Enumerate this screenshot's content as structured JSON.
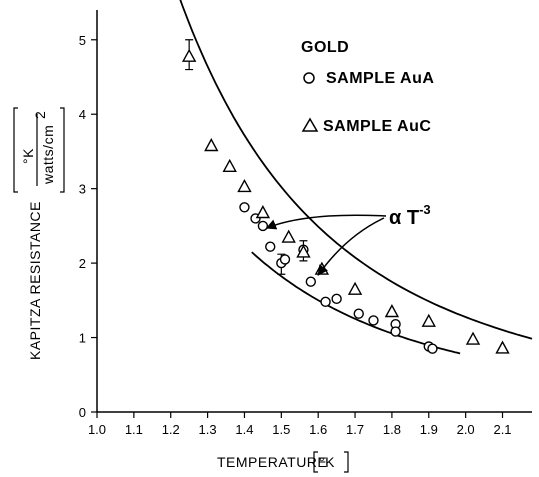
{
  "chart_data": {
    "type": "scatter",
    "xlabel": "TEMPERATURE",
    "xlabel_unit": "°K",
    "ylabel": "KAPITZA RESISTANCE",
    "ylabel_unit_num": "°K",
    "ylabel_unit_den": "watts/cm",
    "ylabel_unit_exp": "2",
    "xlim": [
      1.0,
      2.18
    ],
    "ylim": [
      0,
      5.4
    ],
    "xticks": [
      "1.0",
      "1.1",
      "1.2",
      "1.3",
      "1.4",
      "1.5",
      "1.6",
      "1.7",
      "1.8",
      "1.9",
      "2.0",
      "2.1"
    ],
    "yticks": [
      "0",
      "1",
      "2",
      "3",
      "4",
      "5"
    ],
    "legend_title": "GOLD",
    "series": [
      {
        "name": "SAMPLE AuA",
        "marker": "circle",
        "points": [
          [
            1.4,
            2.75
          ],
          [
            1.43,
            2.6
          ],
          [
            1.45,
            2.5
          ],
          [
            1.47,
            2.22
          ],
          [
            1.5,
            2.0
          ],
          [
            1.51,
            2.05
          ],
          [
            1.56,
            2.18
          ],
          [
            1.58,
            1.75
          ],
          [
            1.62,
            1.48
          ],
          [
            1.65,
            1.52
          ],
          [
            1.71,
            1.32
          ],
          [
            1.75,
            1.23
          ],
          [
            1.81,
            1.18
          ],
          [
            1.81,
            1.08
          ],
          [
            1.9,
            0.88
          ],
          [
            1.91,
            0.85
          ]
        ],
        "error_bars": [
          {
            "x": 1.5,
            "y": 1.98,
            "low": 1.85,
            "high": 2.12
          }
        ]
      },
      {
        "name": "SAMPLE AuC",
        "marker": "triangle",
        "points": [
          [
            1.25,
            4.78
          ],
          [
            1.31,
            3.58
          ],
          [
            1.36,
            3.3
          ],
          [
            1.4,
            3.03
          ],
          [
            1.45,
            2.68
          ],
          [
            1.52,
            2.35
          ],
          [
            1.56,
            2.15
          ],
          [
            1.61,
            1.92
          ],
          [
            1.7,
            1.65
          ],
          [
            1.8,
            1.35
          ],
          [
            1.9,
            1.22
          ],
          [
            2.02,
            0.98
          ],
          [
            2.1,
            0.86
          ]
        ],
        "error_bars": [
          {
            "x": 1.25,
            "y": 4.78,
            "low": 4.6,
            "high": 5.0
          },
          {
            "x": 1.56,
            "y": 2.15,
            "low": 2.03,
            "high": 2.3
          }
        ]
      }
    ],
    "fit_curves": [
      {
        "for": "SAMPLE AuC",
        "form": "A*T^-3",
        "A": 10.2,
        "x_range": [
          1.17,
          2.18
        ]
      },
      {
        "for": "SAMPLE AuA",
        "form": "A*T^-3",
        "A": 6.15,
        "x_range": [
          1.42,
          1.985
        ]
      }
    ],
    "annotation": {
      "text_main": "α T",
      "text_sup": "-3",
      "arrow_targets": [
        [
          1.46,
          2.47
        ],
        [
          1.6,
          1.84
        ]
      ]
    },
    "grid": false
  }
}
